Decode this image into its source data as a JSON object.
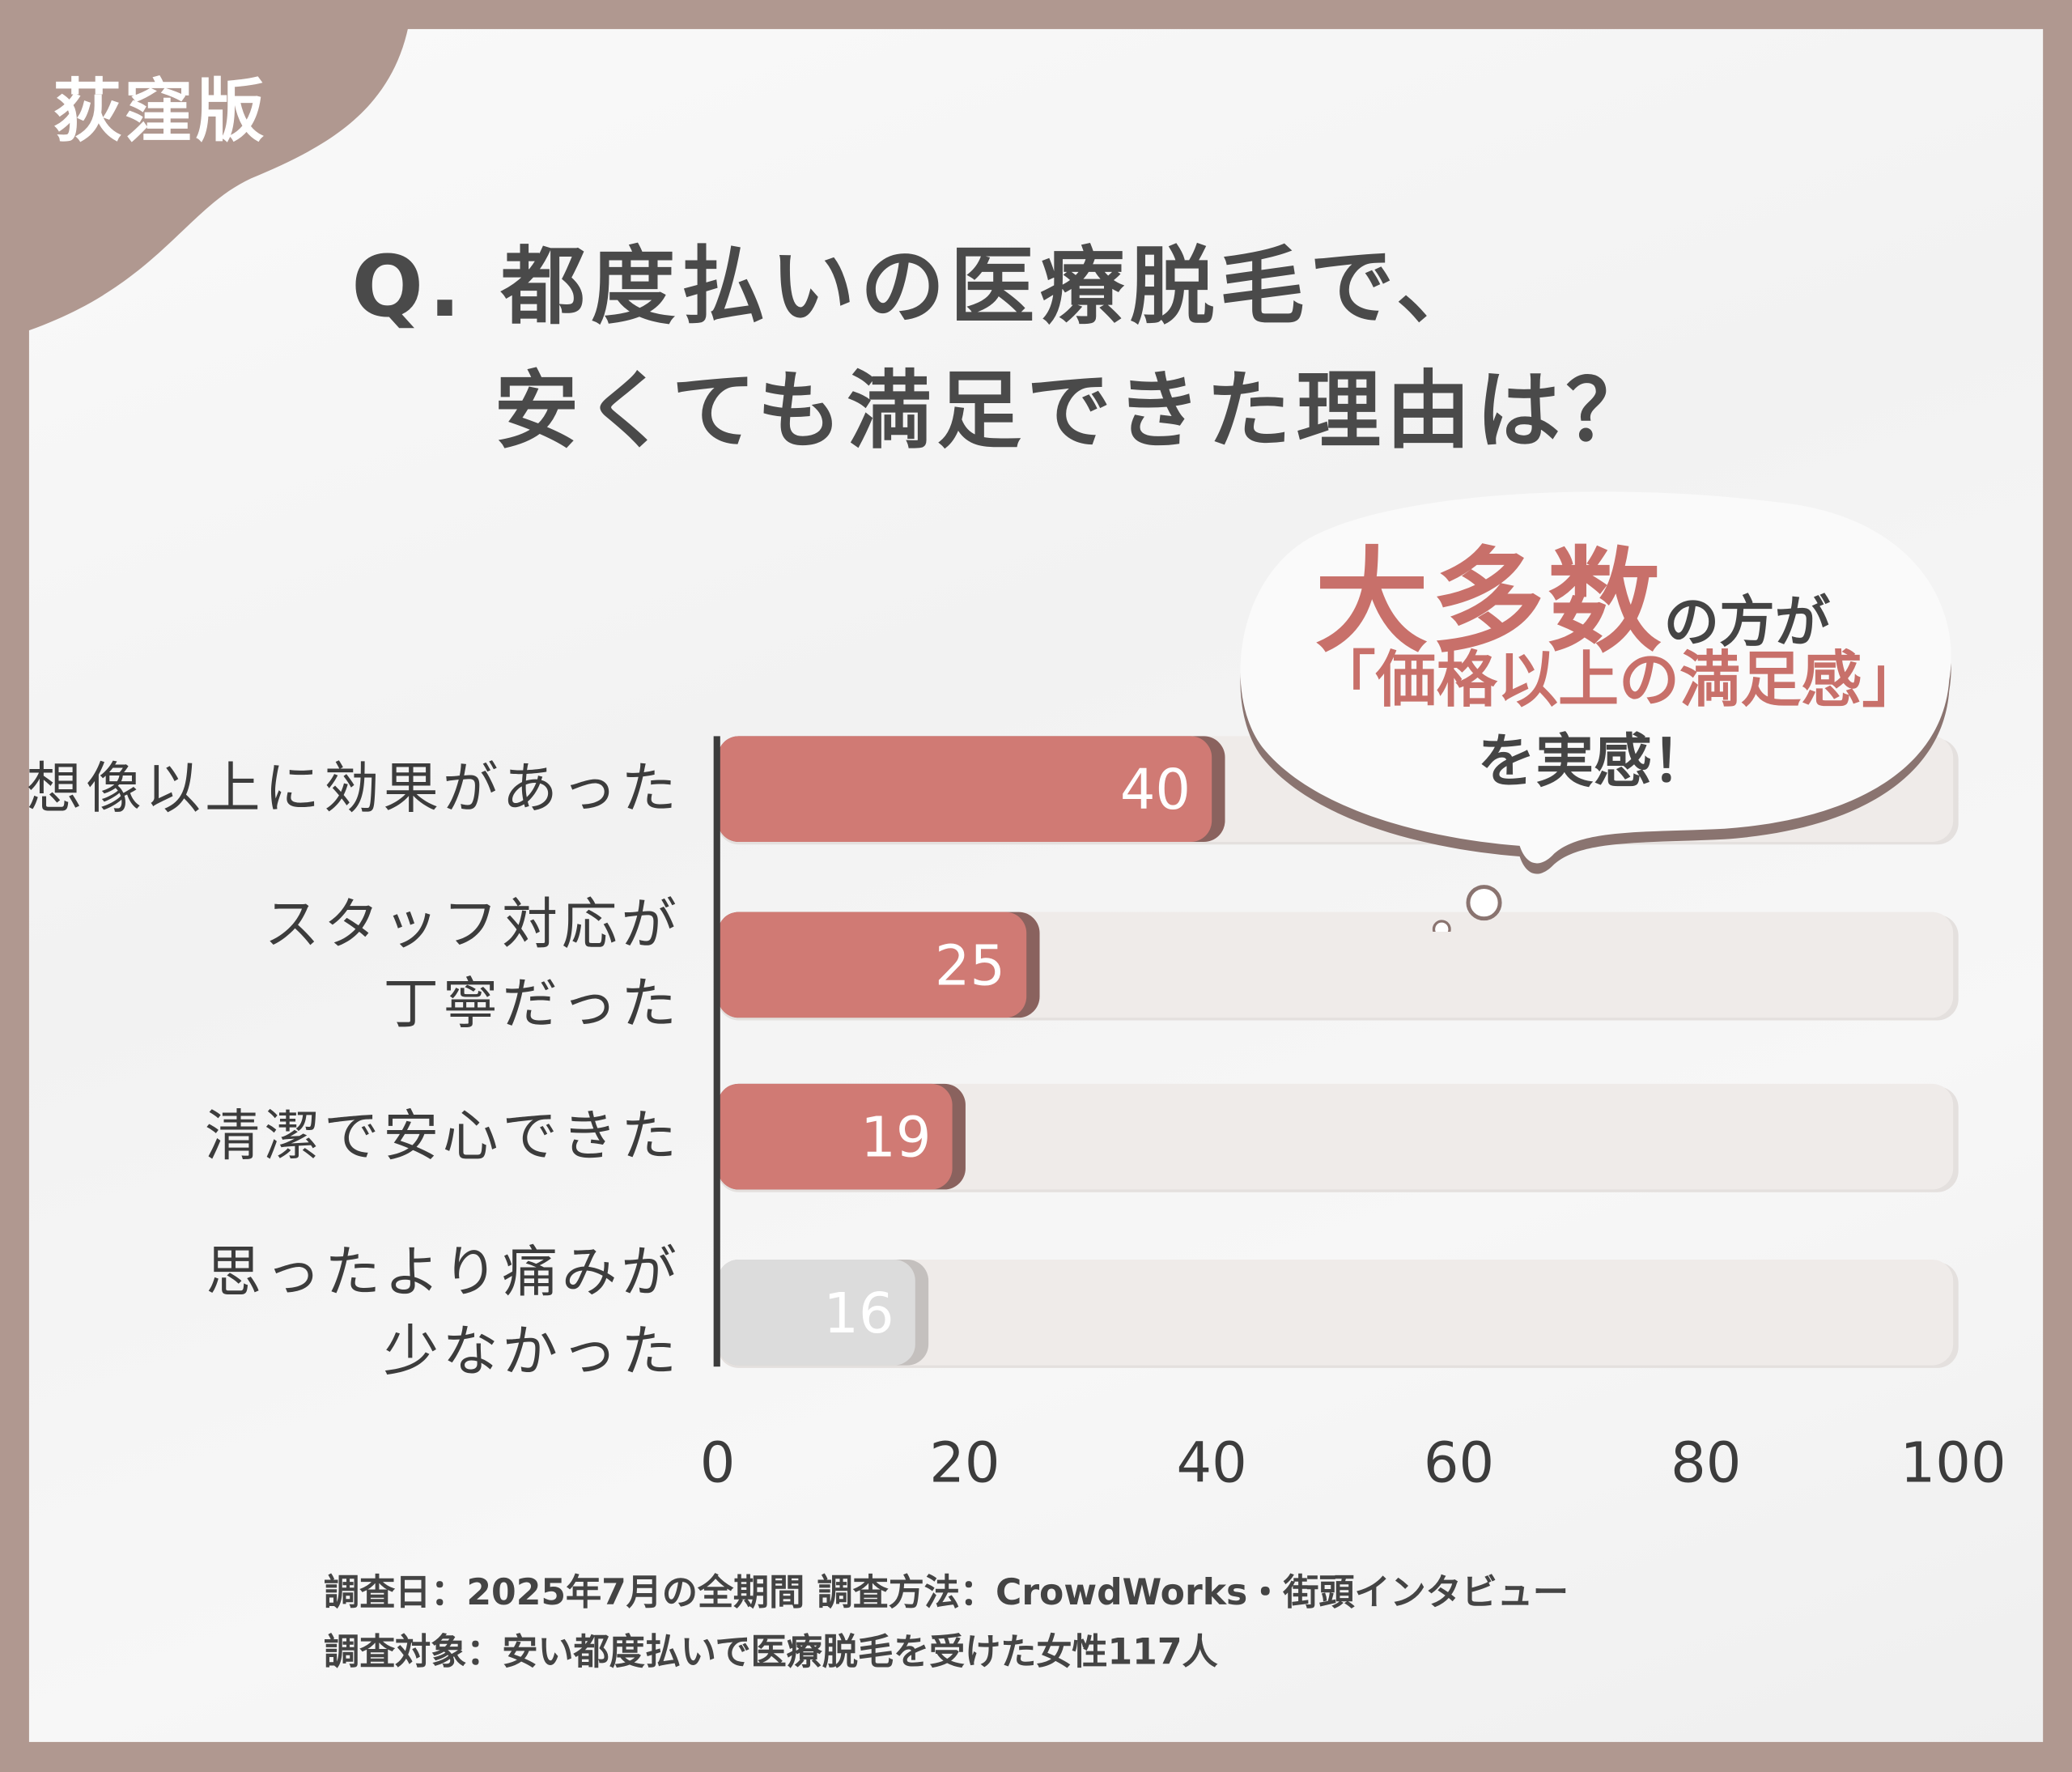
{
  "badge": "荻窪版",
  "title": {
    "line1": "Q. 都度払いの医療脱毛で、",
    "line2": "安くても満足できた理由は？"
  },
  "callout": {
    "big": "大多数",
    "small": "の方が",
    "highlight": "「価格以上の満足感」",
    "end": "を実感！"
  },
  "colors": {
    "frame": "#b09890",
    "bar": "#d07a74",
    "bar_shadow": "#8a625e",
    "bar_muted": "#dcdcdc",
    "track": "#efebe9",
    "text": "#3c3c3c",
    "accent": "#c8706a"
  },
  "chart_data": {
    "type": "bar",
    "orientation": "horizontal",
    "categories": [
      "想像以上に効果があった",
      "スタッフ対応が\n丁寧だった",
      "清潔で安心できた",
      "思ったより痛みが\n少なかった"
    ],
    "values": [
      40,
      25,
      19,
      16
    ],
    "value_labels": [
      "40",
      "25",
      "19",
      "16"
    ],
    "xlim": [
      0,
      100
    ],
    "xticks": [
      "0",
      "20",
      "40",
      "60",
      "80",
      "100"
    ],
    "xtick_values": [
      0,
      20,
      40,
      60,
      80,
      100
    ]
  },
  "footer": {
    "line1": "調査日：2025年7月の全期間 調査方法：CrowdWorks・街頭インタビュー",
    "line2": "調査対象：安い都度払いで医療脱毛を受けた女性117人"
  }
}
